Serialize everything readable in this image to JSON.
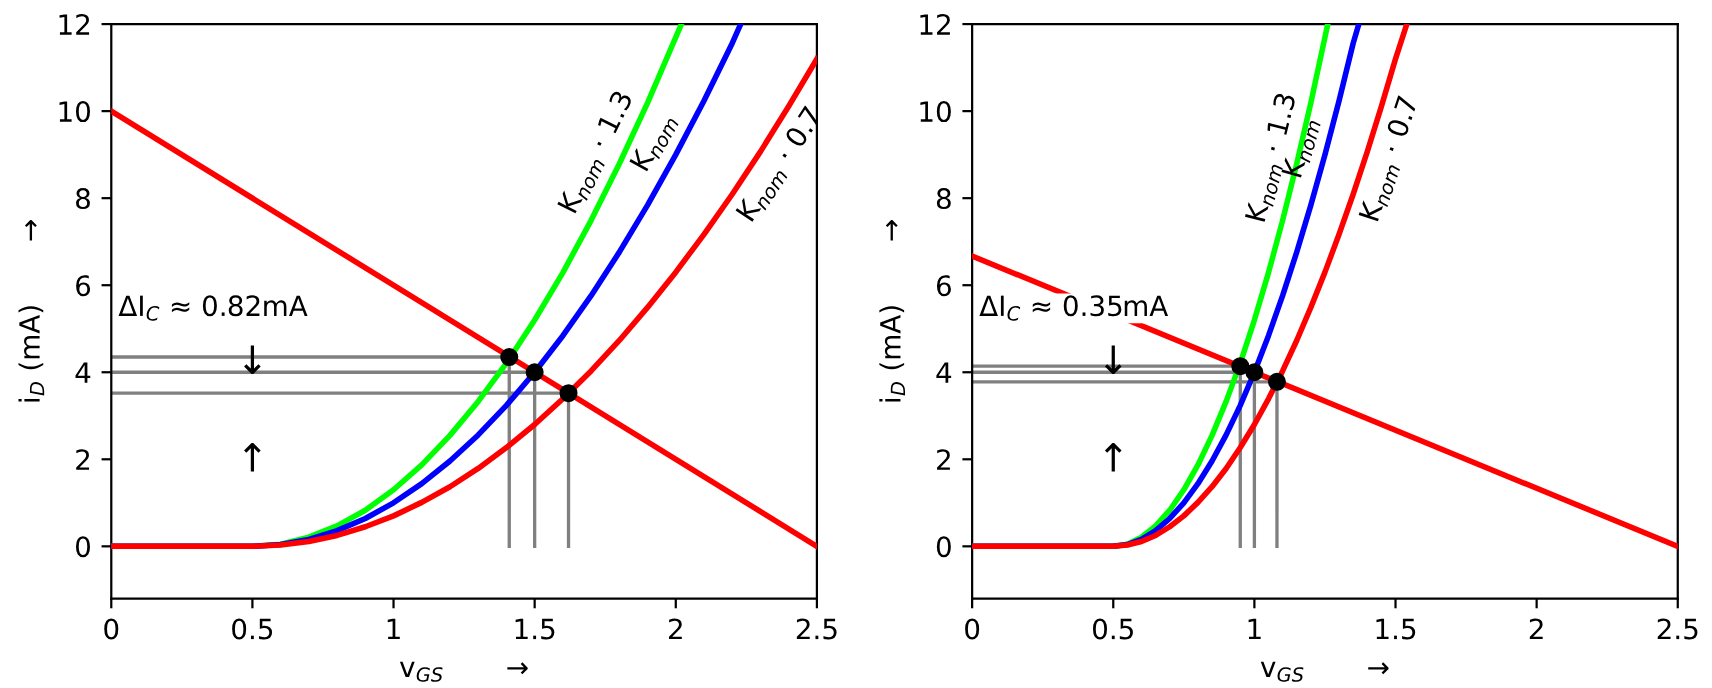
{
  "chart_data": [
    {
      "type": "line",
      "xlabel": "v$_{GS}$       →",
      "ylabel": "i$_{D}$ (mA)       →",
      "xlim": [
        0,
        2.5
      ],
      "ylim": [
        -1.2,
        12
      ],
      "xticks": [
        0,
        0.5,
        1,
        1.5,
        2,
        2.5
      ],
      "yticks": [
        0,
        2,
        4,
        6,
        8,
        10,
        12
      ],
      "annotations": [
        "ΔI$_{C}$ ≈ 0.82mA",
        "↓",
        "↑"
      ],
      "series": [
        {
          "name": "K$_{nom}$ · 1.3",
          "color": "#00ff00",
          "x": [
            0,
            0.5,
            0.6,
            0.7,
            0.8,
            0.9,
            1.0,
            1.1,
            1.2,
            1.3,
            1.4,
            1.5,
            1.6,
            1.7,
            1.8,
            1.9,
            2.02
          ],
          "values": [
            0,
            0,
            0.05,
            0.21,
            0.47,
            0.83,
            1.3,
            1.87,
            2.55,
            3.33,
            4.21,
            5.2,
            6.29,
            7.49,
            8.79,
            10.19,
            12
          ]
        },
        {
          "name": "K$_{nom}$",
          "color": "#0000ff",
          "x": [
            0,
            0.5,
            0.6,
            0.7,
            0.8,
            0.9,
            1.0,
            1.1,
            1.2,
            1.3,
            1.4,
            1.5,
            1.6,
            1.7,
            1.8,
            1.9,
            2.0,
            2.1,
            2.2,
            2.23
          ],
          "values": [
            0,
            0,
            0.04,
            0.16,
            0.36,
            0.64,
            1,
            1.44,
            1.96,
            2.56,
            3.24,
            4,
            4.84,
            5.76,
            6.76,
            7.84,
            9,
            10.24,
            11.56,
            12
          ]
        },
        {
          "name": "K$_{nom}$ · 0.7",
          "color": "#ff0000",
          "x": [
            0,
            0.5,
            0.6,
            0.7,
            0.8,
            0.9,
            1.0,
            1.1,
            1.2,
            1.3,
            1.4,
            1.5,
            1.6,
            1.7,
            1.8,
            1.9,
            2.0,
            2.1,
            2.2,
            2.3,
            2.4,
            2.5
          ],
          "values": [
            0,
            0,
            0.03,
            0.11,
            0.25,
            0.45,
            0.7,
            1.01,
            1.37,
            1.79,
            2.27,
            2.8,
            3.39,
            4.03,
            4.73,
            5.49,
            6.3,
            7.17,
            8.09,
            9.07,
            10.11,
            11.2
          ]
        },
        {
          "color": "#ff0000",
          "x": [
            0,
            2.5
          ],
          "values": [
            10,
            0
          ]
        },
        {
          "color": "#808080",
          "x": [
            0,
            1.41,
            1.41
          ],
          "values": [
            4.35,
            4.35,
            0
          ]
        },
        {
          "color": "#808080",
          "x": [
            0,
            1.5,
            1.5
          ],
          "values": [
            4,
            4,
            0
          ]
        },
        {
          "color": "#808080",
          "x": [
            0,
            1.62,
            1.62
          ],
          "values": [
            3.52,
            3.52,
            0
          ]
        },
        {
          "type": "scatter",
          "color": "#000000",
          "marker": "circle",
          "x": [
            1.41,
            1.5,
            1.62
          ],
          "values": [
            4.35,
            4,
            3.52
          ]
        }
      ]
    },
    {
      "type": "line",
      "xlabel": "v$_{GS}$       →",
      "ylabel": "i$_{D}$ (mA)       →",
      "xlim": [
        0,
        2.5
      ],
      "ylim": [
        -1.2,
        12
      ],
      "xticks": [
        0,
        0.5,
        1,
        1.5,
        2,
        2.5
      ],
      "yticks": [
        0,
        2,
        4,
        6,
        8,
        10,
        12
      ],
      "annotations": [
        "ΔI$_{C}$ ≈ 0.35mA",
        "↓",
        "↑"
      ],
      "series": [
        {
          "name": "K$_{nom}$ · 1.3",
          "color": "#00ff00",
          "x": [
            0,
            0.5,
            0.55,
            0.6,
            0.65,
            0.7,
            0.75,
            0.8,
            0.85,
            0.9,
            0.95,
            1.0,
            1.05,
            1.1,
            1.15,
            1.2,
            1.26
          ],
          "values": [
            0,
            0,
            0.05,
            0.21,
            0.47,
            0.83,
            1.3,
            1.87,
            2.55,
            3.33,
            4.21,
            5.2,
            6.29,
            7.49,
            8.79,
            10.19,
            12
          ]
        },
        {
          "name": "K$_{nom}$",
          "color": "#0000ff",
          "x": [
            0,
            0.5,
            0.55,
            0.6,
            0.65,
            0.7,
            0.75,
            0.8,
            0.85,
            0.9,
            0.95,
            1.0,
            1.05,
            1.1,
            1.15,
            1.2,
            1.25,
            1.3,
            1.35,
            1.37
          ],
          "values": [
            0,
            0,
            0.04,
            0.16,
            0.36,
            0.64,
            1,
            1.44,
            1.96,
            2.56,
            3.24,
            4,
            4.84,
            5.76,
            6.76,
            7.84,
            9,
            10.24,
            11.56,
            12
          ]
        },
        {
          "name": "K$_{nom}$ · 0.7",
          "color": "#ff0000",
          "x": [
            0,
            0.5,
            0.55,
            0.6,
            0.65,
            0.7,
            0.75,
            0.8,
            0.85,
            0.9,
            0.95,
            1.0,
            1.05,
            1.1,
            1.15,
            1.2,
            1.25,
            1.3,
            1.35,
            1.4,
            1.45,
            1.5,
            1.54
          ],
          "values": [
            0,
            0,
            0.03,
            0.11,
            0.25,
            0.45,
            0.7,
            1.01,
            1.37,
            1.79,
            2.27,
            2.8,
            3.39,
            4.03,
            4.73,
            5.49,
            6.3,
            7.17,
            8.09,
            9.07,
            10.11,
            11.2,
            12
          ]
        },
        {
          "color": "#ff0000",
          "x": [
            0,
            2.5
          ],
          "values": [
            6.67,
            0
          ]
        },
        {
          "color": "#808080",
          "x": [
            0,
            0.95,
            0.95
          ],
          "values": [
            4.14,
            4.14,
            0
          ]
        },
        {
          "color": "#808080",
          "x": [
            0,
            1.0,
            1.0
          ],
          "values": [
            4,
            4,
            0
          ]
        },
        {
          "color": "#808080",
          "x": [
            0,
            1.08,
            1.08
          ],
          "values": [
            3.78,
            3.78,
            0
          ]
        },
        {
          "type": "scatter",
          "color": "#000000",
          "marker": "circle",
          "x": [
            0.95,
            1.0,
            1.08
          ],
          "values": [
            4.14,
            4,
            3.78
          ]
        }
      ]
    }
  ]
}
